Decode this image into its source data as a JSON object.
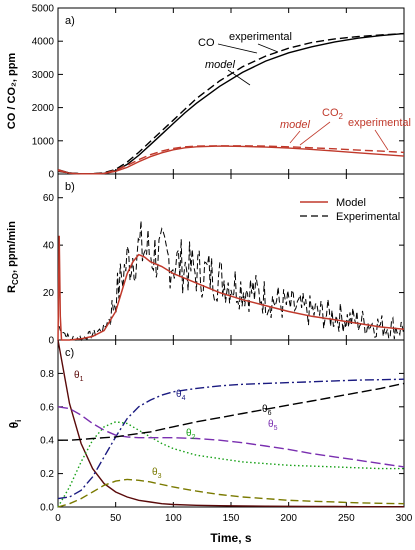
{
  "axes": {
    "xlabel": "Time, s",
    "xlim": [
      0,
      300
    ],
    "xticks": [
      "0",
      "50",
      "100",
      "150",
      "200",
      "250",
      "300"
    ]
  },
  "chart_data": [
    {
      "panel": "a)",
      "type": "line",
      "ylabel": "CO / CO₂, ppm",
      "ylim": [
        0,
        5000
      ],
      "yticks": [
        "0",
        "1000",
        "2000",
        "3000",
        "4000",
        "5000"
      ],
      "x": [
        0,
        10,
        20,
        30,
        40,
        50,
        60,
        70,
        80,
        90,
        100,
        110,
        120,
        140,
        160,
        180,
        200,
        220,
        240,
        260,
        280,
        300
      ],
      "series": [
        {
          "name": "CO model",
          "color": "#000000",
          "dash": "solid",
          "values": [
            130,
            30,
            5,
            5,
            20,
            100,
            290,
            560,
            880,
            1200,
            1520,
            1840,
            2130,
            2640,
            3060,
            3400,
            3650,
            3830,
            3980,
            4090,
            4170,
            4230
          ]
        },
        {
          "name": "CO experimental",
          "color": "#000000",
          "dash": "dashed",
          "values": [
            80,
            30,
            10,
            10,
            40,
            140,
            360,
            650,
            980,
            1300,
            1620,
            1950,
            2270,
            2800,
            3230,
            3550,
            3790,
            3960,
            4070,
            4140,
            4190,
            4230
          ]
        },
        {
          "name": "CO2 model",
          "color": "#c0392b",
          "dash": "solid",
          "values": [
            130,
            20,
            5,
            5,
            15,
            80,
            200,
            370,
            520,
            640,
            730,
            790,
            820,
            840,
            830,
            810,
            780,
            740,
            690,
            640,
            590,
            540
          ]
        },
        {
          "name": "CO2 experimental",
          "color": "#c0392b",
          "dash": "dashed",
          "values": [
            100,
            20,
            5,
            5,
            20,
            120,
            260,
            430,
            580,
            690,
            770,
            820,
            840,
            850,
            850,
            840,
            820,
            790,
            760,
            720,
            690,
            650
          ]
        }
      ],
      "annotations": {
        "co_label": "CO",
        "co_exp": "experimental",
        "co_model": "model",
        "co2_label_base": "CO",
        "co2_label_sub": "2",
        "co2_exp": "experimental",
        "co2_model": "model"
      }
    },
    {
      "panel": "b)",
      "type": "line",
      "ylabel_main": "R",
      "ylabel_sub": "CO",
      "ylabel_rest": ", ppm/min",
      "ylim": [
        0,
        70
      ],
      "yticks": [
        "0",
        "20",
        "40",
        "60"
      ],
      "legend": {
        "position": "top-right",
        "entries": [
          "Model",
          "Experimental"
        ]
      },
      "model_x": [
        0,
        1,
        2,
        3,
        5,
        10,
        20,
        30,
        40,
        50,
        55,
        60,
        65,
        70,
        75,
        80,
        90,
        100,
        110,
        120,
        140,
        160,
        180,
        200,
        220,
        240,
        260,
        280,
        300
      ],
      "model_values": [
        0,
        44,
        10,
        0,
        0,
        0,
        0.5,
        1.5,
        4,
        12,
        20,
        28,
        33,
        36,
        35,
        33,
        31,
        28,
        26,
        24,
        20,
        17,
        14.5,
        12,
        10,
        8.5,
        7,
        5.5,
        4.5
      ],
      "exp_x": [
        0,
        10,
        20,
        30,
        40,
        45,
        50,
        55,
        60,
        65,
        70,
        75,
        80,
        85,
        90,
        95,
        100,
        110,
        120,
        130,
        140,
        150,
        160,
        170,
        180,
        190,
        200,
        210,
        220,
        230,
        240,
        250,
        260,
        270,
        280,
        290,
        300
      ],
      "exp_values": [
        6,
        0.5,
        1,
        2.5,
        5,
        10,
        18,
        26,
        33,
        36,
        38,
        38,
        37,
        36,
        35,
        34,
        33,
        31,
        29,
        28,
        26,
        24,
        22,
        20,
        18,
        16,
        14.5,
        13,
        12,
        11,
        10,
        9,
        8,
        7,
        6,
        5.5,
        5
      ],
      "exp_noise": 10
    },
    {
      "panel": "c)",
      "type": "line",
      "ylabel": "θ",
      "ylabel_sub": "i",
      "ylim": [
        0,
        1.0
      ],
      "yticks": [
        "0.0",
        "0.2",
        "0.4",
        "0.6",
        "0.8"
      ],
      "x": [
        0,
        10,
        20,
        30,
        40,
        50,
        60,
        70,
        80,
        90,
        100,
        120,
        140,
        160,
        180,
        200,
        220,
        240,
        260,
        280,
        300
      ],
      "series": [
        {
          "name": "θ₁",
          "color": "#5a0a0a",
          "dash": "solid",
          "values": [
            1.0,
            0.62,
            0.38,
            0.23,
            0.14,
            0.09,
            0.06,
            0.04,
            0.03,
            0.02,
            0.015,
            0.01,
            0.008,
            0.006,
            0.005,
            0.004,
            0.003,
            0.003,
            0.002,
            0.002,
            0.002
          ]
        },
        {
          "name": "θ₂",
          "color": "#16a016",
          "dash": "dotted",
          "values": [
            0.0,
            0.12,
            0.27,
            0.4,
            0.48,
            0.51,
            0.5,
            0.46,
            0.42,
            0.38,
            0.35,
            0.31,
            0.29,
            0.27,
            0.26,
            0.25,
            0.245,
            0.24,
            0.235,
            0.23,
            0.23
          ]
        },
        {
          "name": "θ₃",
          "color": "#7a7a00",
          "dash": "dashed",
          "values": [
            0.0,
            0.02,
            0.05,
            0.09,
            0.13,
            0.155,
            0.165,
            0.16,
            0.15,
            0.135,
            0.12,
            0.095,
            0.075,
            0.06,
            0.05,
            0.04,
            0.035,
            0.03,
            0.025,
            0.022,
            0.02
          ]
        },
        {
          "name": "θ₄",
          "color": "#1a1a80",
          "dash": "dashdot",
          "values": [
            0.05,
            0.06,
            0.1,
            0.18,
            0.3,
            0.42,
            0.53,
            0.6,
            0.64,
            0.67,
            0.69,
            0.71,
            0.725,
            0.735,
            0.74,
            0.745,
            0.75,
            0.755,
            0.76,
            0.762,
            0.765
          ]
        },
        {
          "name": "θ₅",
          "color": "#7a2fb0",
          "dash": "longdash",
          "values": [
            0.6,
            0.59,
            0.55,
            0.5,
            0.46,
            0.43,
            0.42,
            0.415,
            0.415,
            0.415,
            0.415,
            0.41,
            0.4,
            0.385,
            0.365,
            0.345,
            0.32,
            0.3,
            0.28,
            0.26,
            0.24
          ]
        },
        {
          "name": "θ₆",
          "color": "#000000",
          "dash": "longdash",
          "values": [
            0.4,
            0.4,
            0.405,
            0.41,
            0.415,
            0.42,
            0.43,
            0.44,
            0.45,
            0.465,
            0.48,
            0.51,
            0.535,
            0.56,
            0.585,
            0.61,
            0.635,
            0.66,
            0.685,
            0.71,
            0.74
          ]
        }
      ],
      "curve_labels": [
        {
          "base": "θ",
          "sub": "1",
          "color": "#5a0a0a"
        },
        {
          "base": "θ",
          "sub": "2",
          "color": "#16a016"
        },
        {
          "base": "θ",
          "sub": "3",
          "color": "#7a7a00"
        },
        {
          "base": "θ",
          "sub": "4",
          "color": "#1a1a80"
        },
        {
          "base": "θ",
          "sub": "5",
          "color": "#7a2fb0"
        },
        {
          "base": "θ",
          "sub": "6",
          "color": "#000000"
        }
      ]
    }
  ]
}
